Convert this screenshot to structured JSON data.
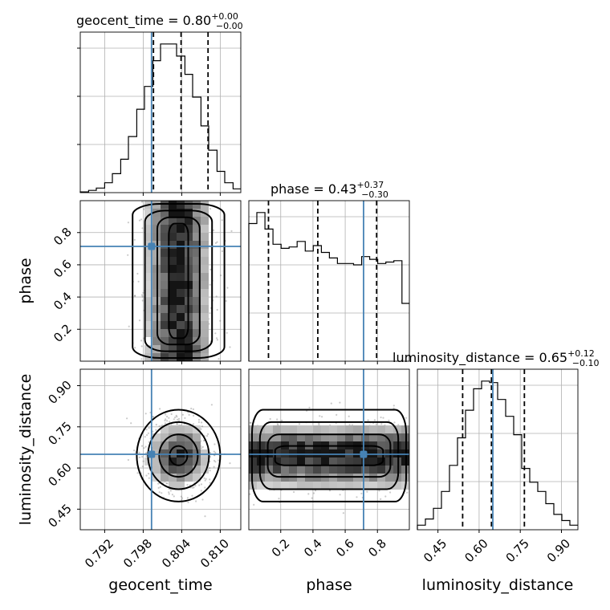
{
  "chart_data": {
    "type": "corner",
    "parameters": [
      "geocent_time",
      "phase",
      "luminosity_distance"
    ],
    "axis_labels": {
      "geocent_time": "geocent_time",
      "phase": "phase",
      "luminosity_distance": "luminosity_distance"
    },
    "ranges": {
      "geocent_time": [
        0.7882,
        0.8132
      ],
      "phase": [
        0.002,
        0.998
      ],
      "luminosity_distance": [
        0.375,
        0.96
      ]
    },
    "ticks": {
      "geocent_time": [
        0.792,
        0.798,
        0.804,
        0.81
      ],
      "phase": [
        0.2,
        0.4,
        0.6,
        0.8
      ],
      "luminosity_distance": [
        0.45,
        0.6,
        0.75,
        0.9
      ]
    },
    "tick_labels": {
      "geocent_time": [
        "0.792",
        "0.798",
        "0.804",
        "0.810"
      ],
      "phase_x": [
        "0.2",
        "0.4",
        "0.6",
        "0.8"
      ],
      "phase_y": [
        "0.2",
        "0.4",
        "0.6",
        "0.8"
      ],
      "luminosity_distance": [
        "0.45",
        "0.60",
        "0.75",
        "0.90"
      ]
    },
    "titles": {
      "geocent_time": {
        "name": "geocent_time",
        "median": "0.80",
        "plus": "+0.00",
        "minus": "−0.00"
      },
      "phase": {
        "name": "phase",
        "median": "0.43",
        "plus": "+0.37",
        "minus": "−0.30"
      },
      "luminosity_distance": {
        "name": "luminosity_distance",
        "median": "0.65",
        "plus": "+0.12",
        "minus": "−0.10"
      }
    },
    "truths": {
      "geocent_time": 0.7993,
      "phase": 0.714,
      "luminosity_distance": 0.65
    },
    "quantiles": {
      "geocent_time": [
        0.7996,
        0.8039,
        0.8081
      ],
      "phase": [
        0.124,
        0.43,
        0.795
      ],
      "luminosity_distance": [
        0.54,
        0.645,
        0.765
      ]
    },
    "histograms": {
      "geocent_time": {
        "edges": [
          0.7882,
          0.7895,
          0.7907,
          0.792,
          0.7932,
          0.7945,
          0.7957,
          0.797,
          0.7982,
          0.7995,
          0.8007,
          0.802,
          0.8032,
          0.8045,
          0.8057,
          0.807,
          0.8082,
          0.8095,
          0.8107,
          0.812,
          0.8132
        ],
        "counts": [
          0.5,
          1.5,
          3,
          6.5,
          12.5,
          22,
          37,
          55,
          70,
          87,
          98,
          98,
          90,
          78,
          63,
          44,
          28,
          14,
          6.5,
          2.5
        ]
      },
      "phase": {
        "edges": [
          0.002,
          0.052,
          0.102,
          0.152,
          0.202,
          0.252,
          0.302,
          0.352,
          0.402,
          0.452,
          0.502,
          0.552,
          0.602,
          0.652,
          0.702,
          0.752,
          0.802,
          0.852,
          0.902,
          0.952,
          0.998
        ],
        "counts": [
          100,
          108,
          96,
          85,
          82,
          83,
          87,
          80,
          84,
          79,
          75,
          71,
          71,
          70,
          76,
          74,
          71,
          72,
          73,
          42
        ]
      },
      "luminosity_distance": {
        "edges": [
          0.375,
          0.4042,
          0.4335,
          0.4627,
          0.492,
          0.5212,
          0.5505,
          0.5797,
          0.609,
          0.6382,
          0.6675,
          0.6967,
          0.726,
          0.7552,
          0.7845,
          0.8137,
          0.843,
          0.8722,
          0.9015,
          0.9307,
          0.96
        ],
        "counts": [
          3,
          7,
          14,
          25,
          42,
          60,
          78,
          92,
          97,
          96,
          85,
          74,
          62,
          40,
          31,
          25,
          17,
          10,
          6,
          3
        ]
      }
    },
    "grid": true
  }
}
